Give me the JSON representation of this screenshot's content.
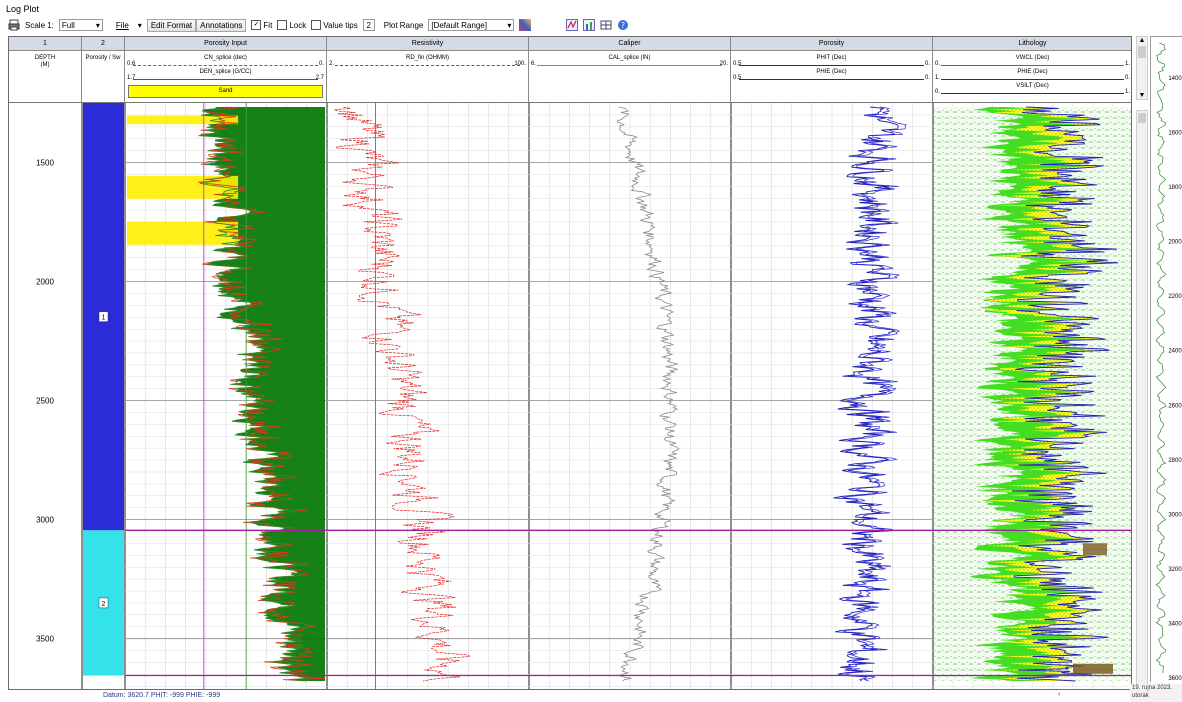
{
  "window": {
    "title": "Log Plot"
  },
  "toolbar": {
    "scale_label": "Scale 1:",
    "scale_value": "Full",
    "file_menu": "File",
    "edit_format": "Edit Format",
    "annotations": "Annotations",
    "fit_label": "Fit",
    "fit_checked": true,
    "lock_label": "Lock",
    "value_tips_label": "Value tips",
    "value_tips_count": "2",
    "plot_range_label": "Plot Range",
    "plot_range_value": "[Default Range]"
  },
  "columns": [
    {
      "num": "1",
      "name": ""
    },
    {
      "num": "2",
      "name": ""
    },
    {
      "num": "",
      "name": "Porosity Input"
    },
    {
      "num": "",
      "name": "Resistivity"
    },
    {
      "num": "",
      "name": "Caliper"
    },
    {
      "num": "",
      "name": "Porosity"
    },
    {
      "num": "",
      "name": "Lithology"
    }
  ],
  "tracks": {
    "depth": {
      "label": "DEPTH",
      "unit": "(M)"
    },
    "zone": {
      "label": "Porosity / Sw"
    },
    "porosity_input": {
      "curve1": {
        "name": "CN_splice (dec)",
        "left": "0.6",
        "right": "0.",
        "color": "#2e8b2e"
      },
      "curve2": {
        "name": "DEN_splice (G/CC)",
        "left": "1.7",
        "right": "2.7",
        "color": "#d02020"
      },
      "fill_label": "Sand",
      "fill_color": "#ffff00"
    },
    "resistivity": {
      "curve": {
        "name": "RD_fin (OHMM)",
        "left": "2.",
        "right": "100.",
        "color": "#e02020"
      }
    },
    "caliper": {
      "curve": {
        "name": "CAL_splice (IN)",
        "left": "6.",
        "right": "20.",
        "color": "#888888"
      }
    },
    "porosity": {
      "curve1": {
        "name": "PHIT (Dec)",
        "left": "0.5",
        "right": "0.",
        "color": "#2020c0"
      },
      "curve2": {
        "name": "PHIE (Dec)",
        "left": "0.5",
        "right": "0.",
        "color": "#2020c0"
      }
    },
    "lithology": {
      "curve1": {
        "name": "VWCL (Dec)",
        "left": "0.",
        "right": "1.",
        "color": "#2e8b2e"
      },
      "curve2": {
        "name": "PHIE (Dec)",
        "left": "1.",
        "right": "0.",
        "color": "#2020c0"
      },
      "curve3": {
        "name": "VSILT (Dec)",
        "left": "0.",
        "right": "1.",
        "color": "#2020c0"
      }
    }
  },
  "depth_ticks": [
    "1500",
    "2000",
    "2500",
    "3000",
    "3500"
  ],
  "zones": [
    {
      "label": "1",
      "color": "#2b2bd8",
      "top_depth": 1250,
      "bottom_depth": 3045
    },
    {
      "label": "2",
      "color": "#33e3e9",
      "top_depth": 3045,
      "bottom_depth": 3655
    }
  ],
  "depth_range": [
    1250,
    3720
  ],
  "zone_boundaries": [
    3045,
    3655
  ],
  "status": {
    "text": "Datum: 3620.7    PHIT: -999    PHIE: -999"
  },
  "overview": {
    "ticks": [
      "1400",
      "1600",
      "1800",
      "2000",
      "2200",
      "2400",
      "2600",
      "2800",
      "3000",
      "3200",
      "3400",
      "3600"
    ]
  },
  "datebox": {
    "line1": "19. rujna 2023.",
    "line2": "utorak"
  },
  "colors": {
    "header_bg": "#d5dbe6",
    "zone_line": "#a020a0"
  }
}
